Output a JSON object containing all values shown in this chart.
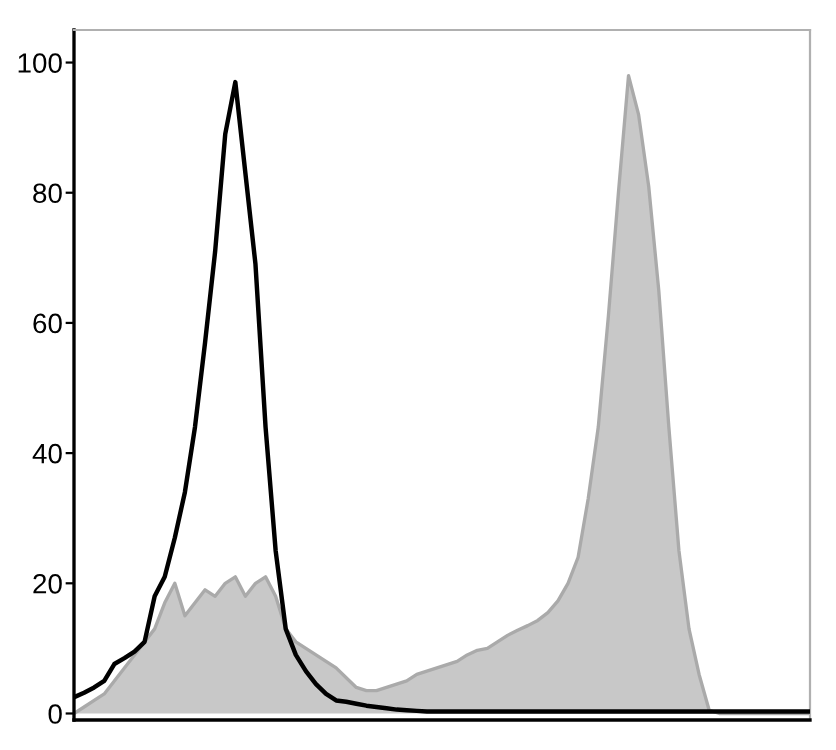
{
  "chart_data": {
    "type": "area",
    "categories": [
      null,
      null,
      null,
      null,
      null,
      null,
      null,
      null,
      null,
      null,
      null,
      null,
      null,
      null,
      null,
      null,
      null,
      null,
      null,
      null,
      null,
      null,
      null,
      null,
      null,
      null,
      null,
      null,
      null,
      null,
      null,
      null,
      null,
      null,
      null,
      null,
      null,
      null,
      null,
      null,
      null,
      null,
      null,
      null,
      null,
      null,
      null,
      null,
      null,
      null,
      null,
      null,
      null,
      null,
      null,
      null,
      null,
      null,
      null,
      null,
      null,
      null,
      null,
      null,
      null,
      null,
      null,
      null,
      null,
      null,
      null,
      null,
      null,
      null
    ],
    "series": [
      {
        "color": "#c8c8c8",
        "values": [
          0,
          1,
          2,
          3,
          5,
          7,
          9,
          11,
          13,
          17,
          20,
          15,
          17,
          19,
          18,
          20,
          21,
          18,
          20,
          21,
          18,
          13,
          11,
          10,
          9,
          8,
          7,
          5.5,
          4,
          3.5,
          3.5,
          4,
          4.5,
          5,
          6,
          6.5,
          7,
          7.5,
          8,
          9,
          9.7,
          10,
          11,
          12,
          12.8,
          13.5,
          14.3,
          15.5,
          17.3,
          20,
          24,
          33,
          44,
          61,
          80,
          98,
          92,
          81,
          65,
          44,
          25,
          13,
          6,
          0.5,
          0,
          0,
          0,
          0,
          0,
          0,
          0,
          0,
          0,
          0
        ]
      },
      {
        "type": "line",
        "color": "#000000",
        "values": [
          2.5,
          3.2,
          4,
          5,
          7.6,
          8.5,
          9.5,
          11,
          18,
          21,
          27,
          34,
          44,
          57,
          71,
          89,
          97,
          83,
          69,
          44,
          25,
          13,
          9,
          6.5,
          4.5,
          3,
          2,
          1.8,
          1.5,
          1.2,
          1,
          0.8,
          0.6,
          0.5,
          0.4,
          0.3,
          0.3,
          0.3,
          0.3,
          0.3,
          0.3,
          0.3,
          0.3,
          0.3,
          0.3,
          0.3,
          0.3,
          0.3,
          0.3,
          0.3,
          0.3,
          0.3,
          0.3,
          0.3,
          0.3,
          0.3,
          0.3,
          0.3,
          0.3,
          0.3,
          0.3,
          0.3,
          0.3,
          0.3,
          0.3,
          0.3,
          0.3,
          0.3,
          0.3,
          0.3,
          0.3,
          0.3,
          0.3,
          0.3
        ]
      }
    ],
    "ylim": [
      -1,
      105
    ],
    "yticks": [
      0,
      20,
      40,
      60,
      80,
      100
    ],
    "tick_labels": "y",
    "grid": false
  }
}
